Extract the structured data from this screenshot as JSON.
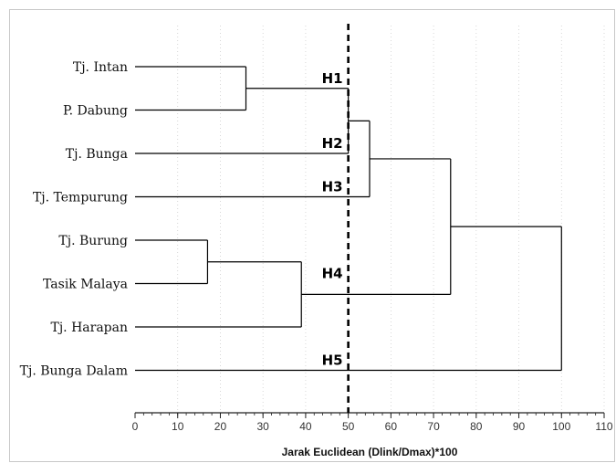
{
  "chart_data": {
    "type": "dendrogram",
    "title": "",
    "xlabel": "Jarak Euclidean (Dlink/Dmax)*100",
    "xlim": [
      0,
      110
    ],
    "xticks": [
      0,
      10,
      20,
      30,
      40,
      50,
      60,
      70,
      80,
      90,
      100,
      110
    ],
    "grid": "vertical dotted",
    "leaves": [
      "Tj. Intan",
      "P. Dabung",
      "Tj. Bunga",
      "Tj. Tempurung",
      "Tj. Burung",
      "Tasik Malaya",
      "Tj. Harapan",
      "Tj. Bunga Dalam"
    ],
    "merges": [
      {
        "a": 4,
        "b": 5,
        "height": 17
      },
      {
        "a": 0,
        "b": 1,
        "height": 26
      },
      {
        "a": 8,
        "b": 6,
        "height": 39
      },
      {
        "a": 9,
        "b": 2,
        "height": 50
      },
      {
        "a": 11,
        "b": 3,
        "height": 55
      },
      {
        "a": 12,
        "b": 10,
        "height": 74
      },
      {
        "a": 13,
        "b": 7,
        "height": 100
      }
    ],
    "cutoff": {
      "value": 50,
      "style": "dashed"
    },
    "annotations": [
      {
        "text": "H1",
        "near_leaf": 0.5
      },
      {
        "text": "H2",
        "near_leaf": 2
      },
      {
        "text": "H3",
        "near_leaf": 3
      },
      {
        "text": "H4",
        "near_leaf": 5
      },
      {
        "text": "H5",
        "near_leaf": 7
      }
    ]
  }
}
